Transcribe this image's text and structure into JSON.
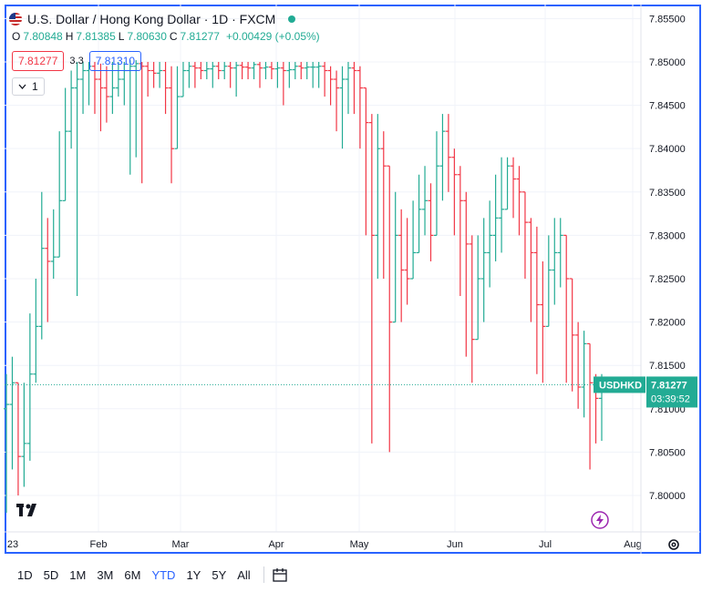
{
  "header": {
    "title": "U.S. Dollar / Hong Kong Dollar · 1D · FXCM",
    "ohlc": {
      "o_label": "O",
      "o": "7.80848",
      "h_label": "H",
      "h": "7.81385",
      "l_label": "L",
      "l": "7.80630",
      "c_label": "C",
      "c": "7.81277",
      "change": "+0.00429 (+0.05%)"
    },
    "sell_price": "7.81277",
    "spread": "3.3",
    "buy_price": "7.81310",
    "indicator_count": "1"
  },
  "colors": {
    "up": "#22ab94",
    "down": "#f23645",
    "accent": "#2962ff",
    "grid": "#f0f3fa"
  },
  "chart_data": {
    "type": "ohlc-bar",
    "symbol": "USDHKD",
    "last_price": "7.81277",
    "countdown": "03:39:52",
    "y_ticks": [
      "7.85500",
      "7.85000",
      "7.84500",
      "7.84000",
      "7.83500",
      "7.83000",
      "7.82500",
      "7.82000",
      "7.81500",
      "7.81000",
      "7.80500",
      "7.80000"
    ],
    "y_range": [
      7.7958,
      7.8563
    ],
    "x_ticks": [
      "23",
      "Feb",
      "Mar",
      "Apr",
      "May",
      "Jun",
      "Jul",
      "Aug"
    ],
    "grid": true,
    "closes": [
      7.8105,
      7.813,
      7.8045,
      7.806,
      7.814,
      7.8195,
      7.8285,
      7.827,
      7.8275,
      7.834,
      7.842,
      7.847,
      7.848,
      7.849,
      7.8495,
      7.848,
      7.847,
      7.846,
      7.847,
      7.848,
      7.849,
      7.8495,
      7.8498,
      7.8495,
      7.849,
      7.8487,
      7.849,
      7.847,
      7.84,
      7.846,
      7.849,
      7.8495,
      7.8493,
      7.849,
      7.8492,
      7.8495,
      7.849,
      7.8495,
      7.8493,
      7.8496,
      7.8494,
      7.8493,
      7.8497,
      7.8493,
      7.8494,
      7.8492,
      7.8493,
      7.849,
      7.8491,
      7.8495,
      7.8493,
      7.8494,
      7.8494,
      7.8495,
      7.849,
      7.848,
      7.847,
      7.848,
      7.8493,
      7.849,
      7.847,
      7.843,
      7.83,
      7.84,
      7.838,
      7.82,
      7.83,
      7.826,
      7.825,
      7.828,
      7.833,
      7.834,
      7.83,
      7.838,
      7.842,
      7.839,
      7.837,
      7.834,
      7.829,
      7.818,
      7.825,
      7.828,
      7.83,
      7.832,
      7.833,
      7.838,
      7.8365,
      7.835,
      7.8315,
      7.828,
      7.822,
      7.8195,
      7.826,
      7.828,
      7.83,
      7.825,
      7.8185,
      7.8125,
      7.8175,
      7.813,
      7.8112,
      7.8128
    ],
    "highs": [
      7.814,
      7.816,
      7.811,
      7.813,
      7.821,
      7.825,
      7.835,
      7.832,
      7.833,
      7.842,
      7.847,
      7.849,
      7.85,
      7.85,
      7.85,
      7.85,
      7.8498,
      7.8495,
      7.85,
      7.85,
      7.85,
      7.8502,
      7.8502,
      7.85,
      7.85,
      7.85,
      7.85,
      7.85,
      7.8495,
      7.8495,
      7.85,
      7.85,
      7.85,
      7.85,
      7.85,
      7.85,
      7.85,
      7.85,
      7.85,
      7.85,
      7.85,
      7.85,
      7.85,
      7.85,
      7.85,
      7.85,
      7.85,
      7.85,
      7.85,
      7.85,
      7.85,
      7.85,
      7.85,
      7.85,
      7.85,
      7.8495,
      7.849,
      7.8495,
      7.85,
      7.85,
      7.8495,
      7.846,
      7.844,
      7.844,
      7.842,
      7.836,
      7.835,
      7.833,
      7.832,
      7.834,
      7.837,
      7.838,
      7.836,
      7.842,
      7.844,
      7.844,
      7.84,
      7.838,
      7.835,
      7.83,
      7.83,
      7.832,
      7.834,
      7.837,
      7.839,
      7.839,
      7.839,
      7.838,
      7.834,
      7.832,
      7.831,
      7.827,
      7.83,
      7.832,
      7.832,
      7.83,
      7.824,
      7.82,
      7.819,
      7.815,
      7.814,
      7.814
    ],
    "lows": [
      7.798,
      7.803,
      7.8,
      7.801,
      7.804,
      7.813,
      7.818,
      7.82,
      7.825,
      7.829,
      7.835,
      7.84,
      7.823,
      7.844,
      7.845,
      7.844,
      7.842,
      7.843,
      7.844,
      7.846,
      7.845,
      7.837,
      7.839,
      7.836,
      7.846,
      7.847,
      7.847,
      7.844,
      7.836,
      7.842,
      7.846,
      7.847,
      7.847,
      7.848,
      7.848,
      7.847,
      7.848,
      7.848,
      7.847,
      7.846,
      7.848,
      7.848,
      7.848,
      7.847,
      7.848,
      7.848,
      7.847,
      7.845,
      7.847,
      7.848,
      7.848,
      7.848,
      7.847,
      7.847,
      7.846,
      7.845,
      7.842,
      7.84,
      7.844,
      7.844,
      7.84,
      7.83,
      7.806,
      7.825,
      7.825,
      7.805,
      7.825,
      7.82,
      7.822,
      7.825,
      7.829,
      7.83,
      7.827,
      7.834,
      7.834,
      7.835,
      7.83,
      7.823,
      7.816,
      7.813,
      7.818,
      7.82,
      7.824,
      7.827,
      7.828,
      7.834,
      7.832,
      7.83,
      7.825,
      7.82,
      7.814,
      7.813,
      7.82,
      7.822,
      7.824,
      7.813,
      7.812,
      7.81,
      7.809,
      7.803,
      7.806,
      7.8063
    ]
  },
  "timeframes": {
    "items": [
      "1D",
      "5D",
      "1M",
      "3M",
      "6M",
      "YTD",
      "1Y",
      "5Y",
      "All"
    ],
    "active": "YTD"
  },
  "icons": {
    "settings": "gear-icon",
    "calendar": "calendar-range-icon",
    "alert": "lightning-icon"
  }
}
